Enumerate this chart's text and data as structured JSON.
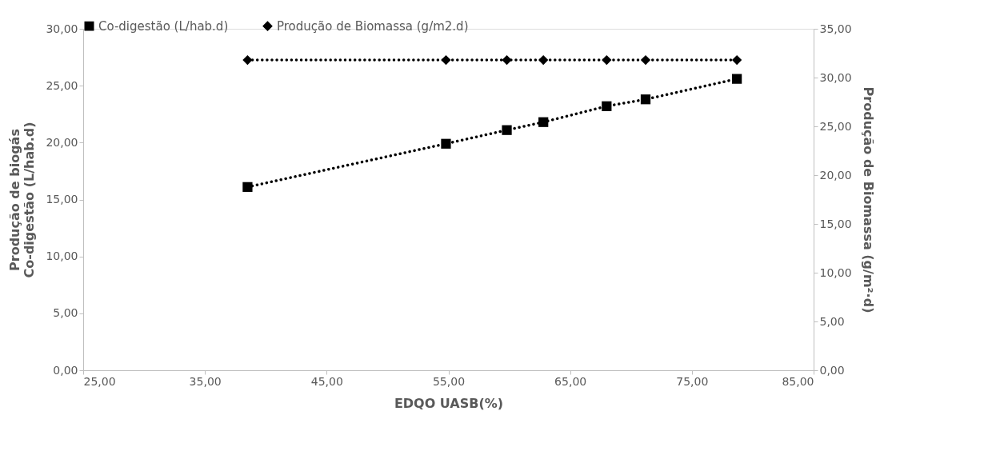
{
  "chart_data": {
    "type": "line",
    "xlabel": "EDQO UASB(%)",
    "ylabel": [
      "Produção de biogás",
      "Co-digestão (L/hab.d)"
    ],
    "y2label": "Produção de Biomassa (g/m²·d)",
    "x": [
      38.5,
      54.8,
      59.8,
      62.8,
      68.0,
      71.2,
      78.7
    ],
    "series": [
      {
        "name": "Co-digestão (L/hab.d)",
        "color": "#000000",
        "marker": "square",
        "values": [
          16.1,
          19.9,
          21.1,
          21.8,
          23.2,
          23.8,
          25.6
        ]
      },
      {
        "name": "Produção de Biomassa (g/m2.d)",
        "color": "#000000",
        "marker": "diamond",
        "axis": "y2",
        "values": [
          31.8,
          31.8,
          31.8,
          31.8,
          31.8,
          31.8,
          31.8
        ]
      }
    ],
    "xlim": [
      25,
      85
    ],
    "xticks": [
      {
        "value": 25,
        "label": "25,00"
      },
      {
        "value": 35,
        "label": "35,00"
      },
      {
        "value": 45,
        "label": "45,00"
      },
      {
        "value": 55,
        "label": "55,00"
      },
      {
        "value": 65,
        "label": "65,00"
      },
      {
        "value": 75,
        "label": "75,00"
      },
      {
        "value": 85,
        "label": "85,00"
      }
    ],
    "ylim": [
      0,
      30
    ],
    "yticks": [
      {
        "value": 0,
        "label": "0,00"
      },
      {
        "value": 5,
        "label": "5,00"
      },
      {
        "value": 10,
        "label": "10,00"
      },
      {
        "value": 15,
        "label": "15,00"
      },
      {
        "value": 20,
        "label": "20,00"
      },
      {
        "value": 25,
        "label": "25,00"
      },
      {
        "value": 30,
        "label": "30,00"
      }
    ],
    "y2lim": [
      0,
      35
    ],
    "y2ticks": [
      {
        "value": 0,
        "label": "0,00"
      },
      {
        "value": 5,
        "label": "5,00"
      },
      {
        "value": 10,
        "label": "10,00"
      },
      {
        "value": 15,
        "label": "15,00"
      },
      {
        "value": 20,
        "label": "20,00"
      },
      {
        "value": 25,
        "label": "25,00"
      },
      {
        "value": 30,
        "label": "30,00"
      },
      {
        "value": 35,
        "label": "35,00"
      }
    ],
    "grid": false,
    "legend": "top",
    "line_style": "dotted"
  }
}
